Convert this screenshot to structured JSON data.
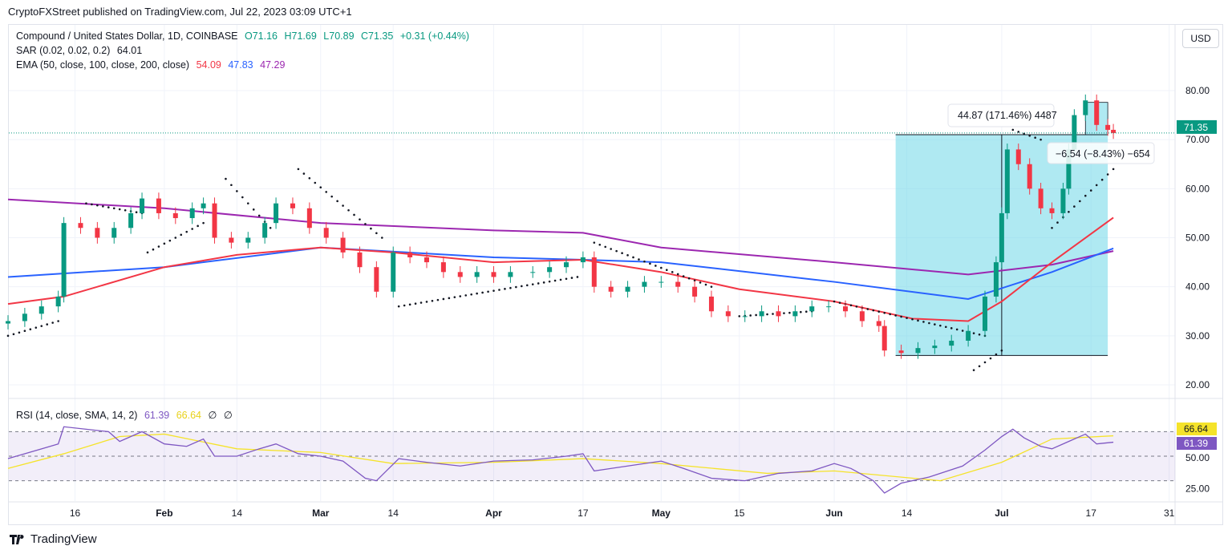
{
  "published": "CryptoFXStreet published on TradingView.com, Jul 22, 2023 03:09 UTC+1",
  "symbol": {
    "name": "Compound / United States Dollar, 1D, COINBASE",
    "o": "O71.16",
    "h": "H71.69",
    "l": "L70.89",
    "c": "C71.35",
    "change": "+0.31 (+0.44%)"
  },
  "sar": {
    "label": "SAR (0.02, 0.02, 0.2)",
    "value": "64.01"
  },
  "ema": {
    "label": "EMA (50, close, 100, close, 200, close)",
    "v50": "54.09",
    "v100": "47.83",
    "v200": "47.29"
  },
  "rsi": {
    "label": "RSI (14, close, SMA, 14, 2)",
    "value": "61.39",
    "sma": "66.64",
    "x1": "∅",
    "x2": "∅"
  },
  "currency_button": "USD",
  "brand": "TradingView",
  "colors": {
    "up": "#089981",
    "down": "#f23645",
    "ema50": "#f23645",
    "ema100": "#2962ff",
    "ema200": "#9c27b0",
    "rsi": "#7e57c2",
    "rsi_sma": "#f5e32a",
    "measure": "#5fd3e6"
  },
  "measure": {
    "label1": "44.87 (171.46%) 4487",
    "label2": "−6.54 (−8.43%) −654"
  },
  "chart_data": {
    "type": "candlestick",
    "xrange": [
      "2023-01-04",
      "2023-07-31"
    ],
    "yrange": [
      17,
      88
    ],
    "price_ticks": [
      "20.00",
      "30.00",
      "40.00",
      "50.00",
      "60.00",
      "70.00",
      "80.00"
    ],
    "last_price": "71.35",
    "x_ticks": [
      {
        "d": "2023-01-16",
        "t": "16"
      },
      {
        "d": "2023-02-01",
        "t": "Feb",
        "bold": true
      },
      {
        "d": "2023-02-14",
        "t": "14"
      },
      {
        "d": "2023-03-01",
        "t": "Mar",
        "bold": true
      },
      {
        "d": "2023-03-14",
        "t": "14"
      },
      {
        "d": "2023-04-01",
        "t": "Apr",
        "bold": true
      },
      {
        "d": "2023-04-17",
        "t": "17"
      },
      {
        "d": "2023-05-01",
        "t": "May",
        "bold": true
      },
      {
        "d": "2023-05-15",
        "t": "15"
      },
      {
        "d": "2023-06-01",
        "t": "Jun",
        "bold": true
      },
      {
        "d": "2023-06-14",
        "t": "14"
      },
      {
        "d": "2023-07-01",
        "t": "Jul",
        "bold": true
      },
      {
        "d": "2023-07-17",
        "t": "17"
      },
      {
        "d": "2023-07-31",
        "t": "31"
      }
    ],
    "closes": [
      [
        "2023-01-04",
        33
      ],
      [
        "2023-01-07",
        34.5
      ],
      [
        "2023-01-10",
        36
      ],
      [
        "2023-01-13",
        38
      ],
      [
        "2023-01-14",
        53
      ],
      [
        "2023-01-17",
        52
      ],
      [
        "2023-01-20",
        50
      ],
      [
        "2023-01-23",
        52
      ],
      [
        "2023-01-26",
        55
      ],
      [
        "2023-01-28",
        58
      ],
      [
        "2023-01-31",
        55
      ],
      [
        "2023-02-03",
        54
      ],
      [
        "2023-02-06",
        56
      ],
      [
        "2023-02-08",
        57
      ],
      [
        "2023-02-10",
        50
      ],
      [
        "2023-02-13",
        49
      ],
      [
        "2023-02-16",
        50
      ],
      [
        "2023-02-19",
        53
      ],
      [
        "2023-02-21",
        57
      ],
      [
        "2023-02-24",
        56
      ],
      [
        "2023-02-27",
        52
      ],
      [
        "2023-03-02",
        50
      ],
      [
        "2023-03-05",
        47
      ],
      [
        "2023-03-08",
        44
      ],
      [
        "2023-03-11",
        39
      ],
      [
        "2023-03-14",
        47
      ],
      [
        "2023-03-17",
        46
      ],
      [
        "2023-03-20",
        45
      ],
      [
        "2023-03-23",
        43
      ],
      [
        "2023-03-26",
        42
      ],
      [
        "2023-03-29",
        43
      ],
      [
        "2023-04-01",
        42
      ],
      [
        "2023-04-04",
        43
      ],
      [
        "2023-04-08",
        43
      ],
      [
        "2023-04-11",
        44
      ],
      [
        "2023-04-14",
        45
      ],
      [
        "2023-04-17",
        46
      ],
      [
        "2023-04-19",
        40
      ],
      [
        "2023-04-22",
        39
      ],
      [
        "2023-04-25",
        40
      ],
      [
        "2023-04-28",
        41
      ],
      [
        "2023-05-01",
        41
      ],
      [
        "2023-05-04",
        40
      ],
      [
        "2023-05-07",
        38
      ],
      [
        "2023-05-10",
        35
      ],
      [
        "2023-05-13",
        34
      ],
      [
        "2023-05-16",
        34
      ],
      [
        "2023-05-19",
        35
      ],
      [
        "2023-05-22",
        34
      ],
      [
        "2023-05-25",
        35
      ],
      [
        "2023-05-28",
        36
      ],
      [
        "2023-05-31",
        36
      ],
      [
        "2023-06-03",
        35
      ],
      [
        "2023-06-06",
        33
      ],
      [
        "2023-06-09",
        32
      ],
      [
        "2023-06-10",
        27
      ],
      [
        "2023-06-13",
        26.5
      ],
      [
        "2023-06-16",
        27.5
      ],
      [
        "2023-06-19",
        28
      ],
      [
        "2023-06-22",
        29
      ],
      [
        "2023-06-25",
        31
      ],
      [
        "2023-06-28",
        38
      ],
      [
        "2023-06-30",
        45
      ],
      [
        "2023-07-01",
        55
      ],
      [
        "2023-07-02",
        68
      ],
      [
        "2023-07-04",
        65
      ],
      [
        "2023-07-06",
        60
      ],
      [
        "2023-07-08",
        56
      ],
      [
        "2023-07-10",
        55
      ],
      [
        "2023-07-12",
        60
      ],
      [
        "2023-07-13",
        68
      ],
      [
        "2023-07-14",
        75
      ],
      [
        "2023-07-16",
        78
      ],
      [
        "2023-07-18",
        73
      ],
      [
        "2023-07-20",
        72
      ],
      [
        "2023-07-21",
        71.35
      ]
    ],
    "ema50": [
      [
        "2023-01-04",
        36.5
      ],
      [
        "2023-01-14",
        38
      ],
      [
        "2023-02-01",
        44
      ],
      [
        "2023-02-14",
        46.5
      ],
      [
        "2023-03-01",
        48
      ],
      [
        "2023-03-14",
        47
      ],
      [
        "2023-04-01",
        45
      ],
      [
        "2023-04-17",
        45.5
      ],
      [
        "2023-05-01",
        43
      ],
      [
        "2023-05-15",
        39.5
      ],
      [
        "2023-06-01",
        37
      ],
      [
        "2023-06-15",
        33.5
      ],
      [
        "2023-06-25",
        33
      ],
      [
        "2023-07-01",
        37
      ],
      [
        "2023-07-10",
        45
      ],
      [
        "2023-07-21",
        54.09
      ]
    ],
    "ema100": [
      [
        "2023-01-04",
        42
      ],
      [
        "2023-02-01",
        44
      ],
      [
        "2023-03-01",
        48
      ],
      [
        "2023-04-01",
        46
      ],
      [
        "2023-04-17",
        45.5
      ],
      [
        "2023-05-01",
        45
      ],
      [
        "2023-06-01",
        41
      ],
      [
        "2023-06-25",
        37.5
      ],
      [
        "2023-07-10",
        43
      ],
      [
        "2023-07-21",
        47.83
      ]
    ],
    "ema200": [
      [
        "2023-01-04",
        57.8
      ],
      [
        "2023-02-01",
        56
      ],
      [
        "2023-03-01",
        53
      ],
      [
        "2023-04-01",
        51.5
      ],
      [
        "2023-04-17",
        51
      ],
      [
        "2023-05-01",
        48
      ],
      [
        "2023-06-01",
        45
      ],
      [
        "2023-06-25",
        42.5
      ],
      [
        "2023-07-10",
        44.5
      ],
      [
        "2023-07-21",
        47.29
      ]
    ],
    "sar": [
      [
        [
          "2023-01-04",
          30
        ],
        [
          "2023-01-13",
          33
        ]
      ],
      [
        [
          "2023-01-18",
          57
        ],
        [
          "2023-01-28",
          55
        ]
      ],
      [
        [
          "2023-01-29",
          47
        ],
        [
          "2023-02-08",
          53
        ]
      ],
      [
        [
          "2023-02-12",
          62
        ],
        [
          "2023-02-20",
          52
        ]
      ],
      [
        [
          "2023-02-25",
          64
        ],
        [
          "2023-03-12",
          50
        ]
      ],
      [
        [
          "2023-03-15",
          36
        ],
        [
          "2023-04-16",
          42
        ]
      ],
      [
        [
          "2023-04-19",
          49
        ],
        [
          "2023-05-10",
          40
        ]
      ],
      [
        [
          "2023-05-15",
          34
        ],
        [
          "2023-05-28",
          35
        ]
      ],
      [
        [
          "2023-06-01",
          37
        ],
        [
          "2023-06-28",
          30
        ]
      ],
      [
        [
          "2023-06-26",
          23
        ],
        [
          "2023-07-01",
          27
        ]
      ],
      [
        [
          "2023-07-03",
          72
        ],
        [
          "2023-07-08",
          70
        ]
      ],
      [
        [
          "2023-07-10",
          52
        ],
        [
          "2023-07-21",
          64
        ]
      ]
    ],
    "rsi_ticks": [
      "25.00",
      "50.00"
    ],
    "rsi_value_tag": "61.39",
    "rsi_sma_tag": "66.64",
    "rsi_series": [
      [
        "2023-01-04",
        48
      ],
      [
        "2023-01-10",
        56
      ],
      [
        "2023-01-13",
        60
      ],
      [
        "2023-01-14",
        74
      ],
      [
        "2023-01-18",
        72
      ],
      [
        "2023-01-22",
        70
      ],
      [
        "2023-01-24",
        62
      ],
      [
        "2023-01-28",
        70
      ],
      [
        "2023-02-01",
        60
      ],
      [
        "2023-02-05",
        58
      ],
      [
        "2023-02-08",
        64
      ],
      [
        "2023-02-10",
        50
      ],
      [
        "2023-02-14",
        50
      ],
      [
        "2023-02-18",
        56
      ],
      [
        "2023-02-21",
        60
      ],
      [
        "2023-02-25",
        52
      ],
      [
        "2023-03-01",
        50
      ],
      [
        "2023-03-05",
        46
      ],
      [
        "2023-03-09",
        32
      ],
      [
        "2023-03-11",
        30
      ],
      [
        "2023-03-15",
        48
      ],
      [
        "2023-03-20",
        45
      ],
      [
        "2023-03-26",
        42
      ],
      [
        "2023-04-01",
        46
      ],
      [
        "2023-04-08",
        47
      ],
      [
        "2023-04-14",
        50
      ],
      [
        "2023-04-17",
        52
      ],
      [
        "2023-04-19",
        38
      ],
      [
        "2023-04-25",
        42
      ],
      [
        "2023-05-01",
        46
      ],
      [
        "2023-05-05",
        40
      ],
      [
        "2023-05-10",
        32
      ],
      [
        "2023-05-16",
        30
      ],
      [
        "2023-05-22",
        36
      ],
      [
        "2023-05-28",
        38
      ],
      [
        "2023-06-01",
        44
      ],
      [
        "2023-06-04",
        40
      ],
      [
        "2023-06-08",
        30
      ],
      [
        "2023-06-10",
        20
      ],
      [
        "2023-06-13",
        28
      ],
      [
        "2023-06-18",
        33
      ],
      [
        "2023-06-24",
        42
      ],
      [
        "2023-06-28",
        55
      ],
      [
        "2023-07-01",
        66
      ],
      [
        "2023-07-03",
        72
      ],
      [
        "2023-07-05",
        65
      ],
      [
        "2023-07-08",
        58
      ],
      [
        "2023-07-10",
        56
      ],
      [
        "2023-07-13",
        62
      ],
      [
        "2023-07-16",
        68
      ],
      [
        "2023-07-18",
        60
      ],
      [
        "2023-07-21",
        61.39
      ]
    ],
    "rsi_sma_series": [
      [
        "2023-01-04",
        40
      ],
      [
        "2023-01-14",
        52
      ],
      [
        "2023-01-24",
        66
      ],
      [
        "2023-02-01",
        68
      ],
      [
        "2023-02-14",
        56
      ],
      [
        "2023-03-01",
        53
      ],
      [
        "2023-03-14",
        44
      ],
      [
        "2023-04-01",
        45
      ],
      [
        "2023-04-17",
        48
      ],
      [
        "2023-05-01",
        44
      ],
      [
        "2023-05-20",
        36
      ],
      [
        "2023-06-01",
        38
      ],
      [
        "2023-06-20",
        30
      ],
      [
        "2023-07-01",
        45
      ],
      [
        "2023-07-10",
        64
      ],
      [
        "2023-07-21",
        66.64
      ]
    ],
    "rsi_bands": [
      70,
      50,
      30
    ]
  }
}
